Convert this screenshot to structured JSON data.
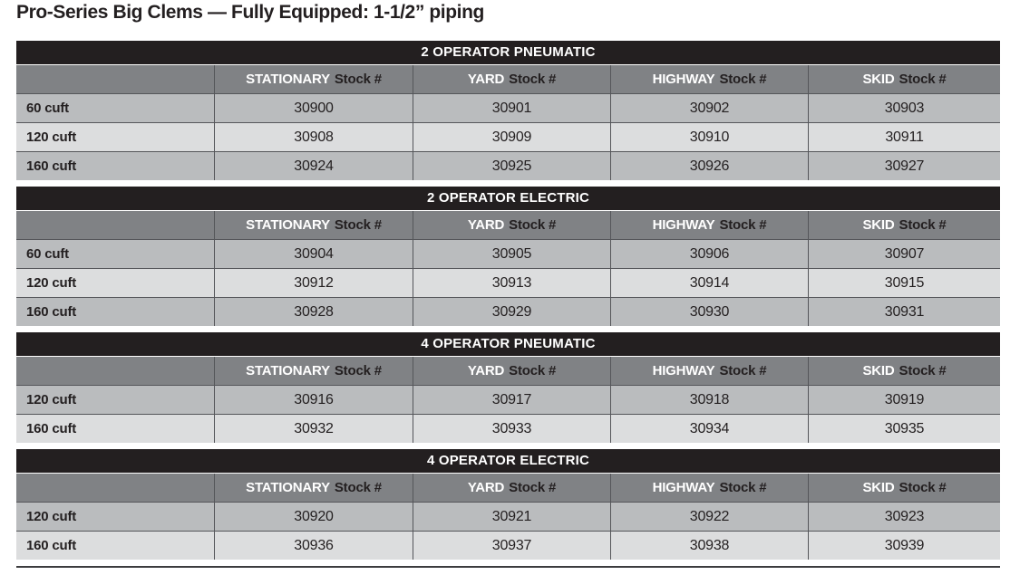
{
  "title": "Pro-Series Big Clems — Fully Equipped: 1-1/2” piping",
  "stock_label": "Stock #",
  "columns": [
    "STATIONARY",
    "YARD",
    "HIGHWAY",
    "SKID"
  ],
  "tables": [
    {
      "section": "2 OPERATOR PNEUMATIC",
      "rows": [
        {
          "label": "60 cuft",
          "values": [
            "30900",
            "30901",
            "30902",
            "30903"
          ]
        },
        {
          "label": "120 cuft",
          "values": [
            "30908",
            "30909",
            "30910",
            "30911"
          ]
        },
        {
          "label": "160 cuft",
          "values": [
            "30924",
            "30925",
            "30926",
            "30927"
          ]
        }
      ]
    },
    {
      "section": "2 OPERATOR ELECTRIC",
      "rows": [
        {
          "label": "60 cuft",
          "values": [
            "30904",
            "30905",
            "30906",
            "30907"
          ]
        },
        {
          "label": "120 cuft",
          "values": [
            "30912",
            "30913",
            "30914",
            "30915"
          ]
        },
        {
          "label": "160 cuft",
          "values": [
            "30928",
            "30929",
            "30930",
            "30931"
          ]
        }
      ]
    },
    {
      "section": "4 OPERATOR PNEUMATIC",
      "rows": [
        {
          "label": "120 cuft",
          "values": [
            "30916",
            "30917",
            "30918",
            "30919"
          ]
        },
        {
          "label": "160 cuft",
          "values": [
            "30932",
            "30933",
            "30934",
            "30935"
          ]
        }
      ]
    },
    {
      "section": "4 OPERATOR ELECTRIC",
      "rows": [
        {
          "label": "120 cuft",
          "values": [
            "30920",
            "30921",
            "30922",
            "30923"
          ]
        },
        {
          "label": "160 cuft",
          "values": [
            "30936",
            "30937",
            "30938",
            "30939"
          ]
        }
      ]
    }
  ],
  "colors": {
    "section_bg": "#231f20",
    "section_text": "#ffffff",
    "header_bg": "#808285",
    "header_column_text": "#ffffff",
    "header_suffix_text": "#231f20",
    "row_medium": "#babcbe",
    "row_light": "#dcddde",
    "grid_line": "#55565a",
    "text": "#231f20"
  }
}
